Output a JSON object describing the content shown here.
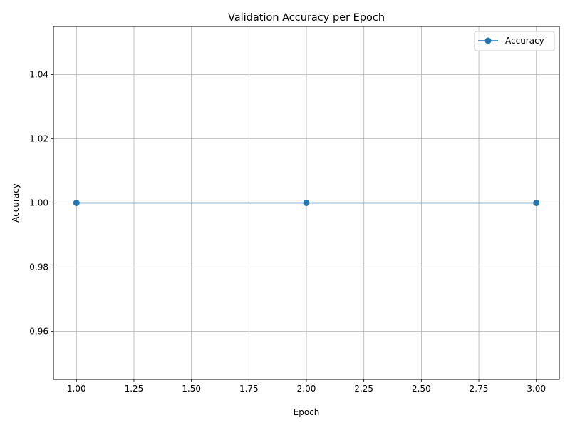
{
  "chart_data": {
    "type": "line",
    "title": "Validation Accuracy per Epoch",
    "xlabel": "Epoch",
    "ylabel": "Accuracy",
    "xlim": [
      0.9,
      3.1
    ],
    "ylim": [
      0.945,
      1.055
    ],
    "xticks": [
      1.0,
      1.25,
      1.5,
      1.75,
      2.0,
      2.25,
      2.5,
      2.75,
      3.0
    ],
    "xtick_labels": [
      "1.00",
      "1.25",
      "1.50",
      "1.75",
      "2.00",
      "2.25",
      "2.50",
      "2.75",
      "3.00"
    ],
    "yticks": [
      0.96,
      0.98,
      1.0,
      1.02,
      1.04
    ],
    "ytick_labels": [
      "0.96",
      "0.98",
      "1.00",
      "1.02",
      "1.04"
    ],
    "grid": true,
    "legend_position": "top-right",
    "series": [
      {
        "name": "Accuracy",
        "color": "#1f77b4",
        "marker": "circle",
        "x": [
          1,
          2,
          3
        ],
        "y": [
          1.0,
          1.0,
          1.0
        ]
      }
    ]
  }
}
